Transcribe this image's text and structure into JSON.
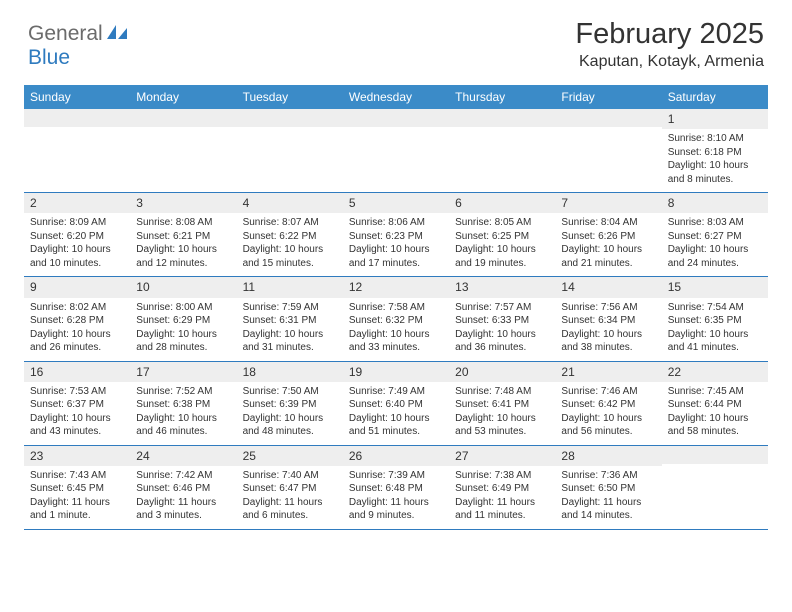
{
  "logo": {
    "part1": "General",
    "part2": "Blue"
  },
  "title": "February 2025",
  "location": "Kaputan, Kotayk, Armenia",
  "colors": {
    "header_bg": "#3b8bc8",
    "accent": "#2f7bbf",
    "daynum_bg": "#eeeeee",
    "logo_gray": "#6b6b6b",
    "logo_blue": "#2f7bbf",
    "text": "#333333",
    "background": "#ffffff"
  },
  "day_names": [
    "Sunday",
    "Monday",
    "Tuesday",
    "Wednesday",
    "Thursday",
    "Friday",
    "Saturday"
  ],
  "weeks": [
    [
      {
        "blank": true
      },
      {
        "blank": true
      },
      {
        "blank": true
      },
      {
        "blank": true
      },
      {
        "blank": true
      },
      {
        "blank": true
      },
      {
        "day": "1",
        "sunrise": "Sunrise: 8:10 AM",
        "sunset": "Sunset: 6:18 PM",
        "daylight1": "Daylight: 10 hours",
        "daylight2": "and 8 minutes."
      }
    ],
    [
      {
        "day": "2",
        "sunrise": "Sunrise: 8:09 AM",
        "sunset": "Sunset: 6:20 PM",
        "daylight1": "Daylight: 10 hours",
        "daylight2": "and 10 minutes."
      },
      {
        "day": "3",
        "sunrise": "Sunrise: 8:08 AM",
        "sunset": "Sunset: 6:21 PM",
        "daylight1": "Daylight: 10 hours",
        "daylight2": "and 12 minutes."
      },
      {
        "day": "4",
        "sunrise": "Sunrise: 8:07 AM",
        "sunset": "Sunset: 6:22 PM",
        "daylight1": "Daylight: 10 hours",
        "daylight2": "and 15 minutes."
      },
      {
        "day": "5",
        "sunrise": "Sunrise: 8:06 AM",
        "sunset": "Sunset: 6:23 PM",
        "daylight1": "Daylight: 10 hours",
        "daylight2": "and 17 minutes."
      },
      {
        "day": "6",
        "sunrise": "Sunrise: 8:05 AM",
        "sunset": "Sunset: 6:25 PM",
        "daylight1": "Daylight: 10 hours",
        "daylight2": "and 19 minutes."
      },
      {
        "day": "7",
        "sunrise": "Sunrise: 8:04 AM",
        "sunset": "Sunset: 6:26 PM",
        "daylight1": "Daylight: 10 hours",
        "daylight2": "and 21 minutes."
      },
      {
        "day": "8",
        "sunrise": "Sunrise: 8:03 AM",
        "sunset": "Sunset: 6:27 PM",
        "daylight1": "Daylight: 10 hours",
        "daylight2": "and 24 minutes."
      }
    ],
    [
      {
        "day": "9",
        "sunrise": "Sunrise: 8:02 AM",
        "sunset": "Sunset: 6:28 PM",
        "daylight1": "Daylight: 10 hours",
        "daylight2": "and 26 minutes."
      },
      {
        "day": "10",
        "sunrise": "Sunrise: 8:00 AM",
        "sunset": "Sunset: 6:29 PM",
        "daylight1": "Daylight: 10 hours",
        "daylight2": "and 28 minutes."
      },
      {
        "day": "11",
        "sunrise": "Sunrise: 7:59 AM",
        "sunset": "Sunset: 6:31 PM",
        "daylight1": "Daylight: 10 hours",
        "daylight2": "and 31 minutes."
      },
      {
        "day": "12",
        "sunrise": "Sunrise: 7:58 AM",
        "sunset": "Sunset: 6:32 PM",
        "daylight1": "Daylight: 10 hours",
        "daylight2": "and 33 minutes."
      },
      {
        "day": "13",
        "sunrise": "Sunrise: 7:57 AM",
        "sunset": "Sunset: 6:33 PM",
        "daylight1": "Daylight: 10 hours",
        "daylight2": "and 36 minutes."
      },
      {
        "day": "14",
        "sunrise": "Sunrise: 7:56 AM",
        "sunset": "Sunset: 6:34 PM",
        "daylight1": "Daylight: 10 hours",
        "daylight2": "and 38 minutes."
      },
      {
        "day": "15",
        "sunrise": "Sunrise: 7:54 AM",
        "sunset": "Sunset: 6:35 PM",
        "daylight1": "Daylight: 10 hours",
        "daylight2": "and 41 minutes."
      }
    ],
    [
      {
        "day": "16",
        "sunrise": "Sunrise: 7:53 AM",
        "sunset": "Sunset: 6:37 PM",
        "daylight1": "Daylight: 10 hours",
        "daylight2": "and 43 minutes."
      },
      {
        "day": "17",
        "sunrise": "Sunrise: 7:52 AM",
        "sunset": "Sunset: 6:38 PM",
        "daylight1": "Daylight: 10 hours",
        "daylight2": "and 46 minutes."
      },
      {
        "day": "18",
        "sunrise": "Sunrise: 7:50 AM",
        "sunset": "Sunset: 6:39 PM",
        "daylight1": "Daylight: 10 hours",
        "daylight2": "and 48 minutes."
      },
      {
        "day": "19",
        "sunrise": "Sunrise: 7:49 AM",
        "sunset": "Sunset: 6:40 PM",
        "daylight1": "Daylight: 10 hours",
        "daylight2": "and 51 minutes."
      },
      {
        "day": "20",
        "sunrise": "Sunrise: 7:48 AM",
        "sunset": "Sunset: 6:41 PM",
        "daylight1": "Daylight: 10 hours",
        "daylight2": "and 53 minutes."
      },
      {
        "day": "21",
        "sunrise": "Sunrise: 7:46 AM",
        "sunset": "Sunset: 6:42 PM",
        "daylight1": "Daylight: 10 hours",
        "daylight2": "and 56 minutes."
      },
      {
        "day": "22",
        "sunrise": "Sunrise: 7:45 AM",
        "sunset": "Sunset: 6:44 PM",
        "daylight1": "Daylight: 10 hours",
        "daylight2": "and 58 minutes."
      }
    ],
    [
      {
        "day": "23",
        "sunrise": "Sunrise: 7:43 AM",
        "sunset": "Sunset: 6:45 PM",
        "daylight1": "Daylight: 11 hours",
        "daylight2": "and 1 minute."
      },
      {
        "day": "24",
        "sunrise": "Sunrise: 7:42 AM",
        "sunset": "Sunset: 6:46 PM",
        "daylight1": "Daylight: 11 hours",
        "daylight2": "and 3 minutes."
      },
      {
        "day": "25",
        "sunrise": "Sunrise: 7:40 AM",
        "sunset": "Sunset: 6:47 PM",
        "daylight1": "Daylight: 11 hours",
        "daylight2": "and 6 minutes."
      },
      {
        "day": "26",
        "sunrise": "Sunrise: 7:39 AM",
        "sunset": "Sunset: 6:48 PM",
        "daylight1": "Daylight: 11 hours",
        "daylight2": "and 9 minutes."
      },
      {
        "day": "27",
        "sunrise": "Sunrise: 7:38 AM",
        "sunset": "Sunset: 6:49 PM",
        "daylight1": "Daylight: 11 hours",
        "daylight2": "and 11 minutes."
      },
      {
        "day": "28",
        "sunrise": "Sunrise: 7:36 AM",
        "sunset": "Sunset: 6:50 PM",
        "daylight1": "Daylight: 11 hours",
        "daylight2": "and 14 minutes."
      },
      {
        "blank": true
      }
    ]
  ]
}
